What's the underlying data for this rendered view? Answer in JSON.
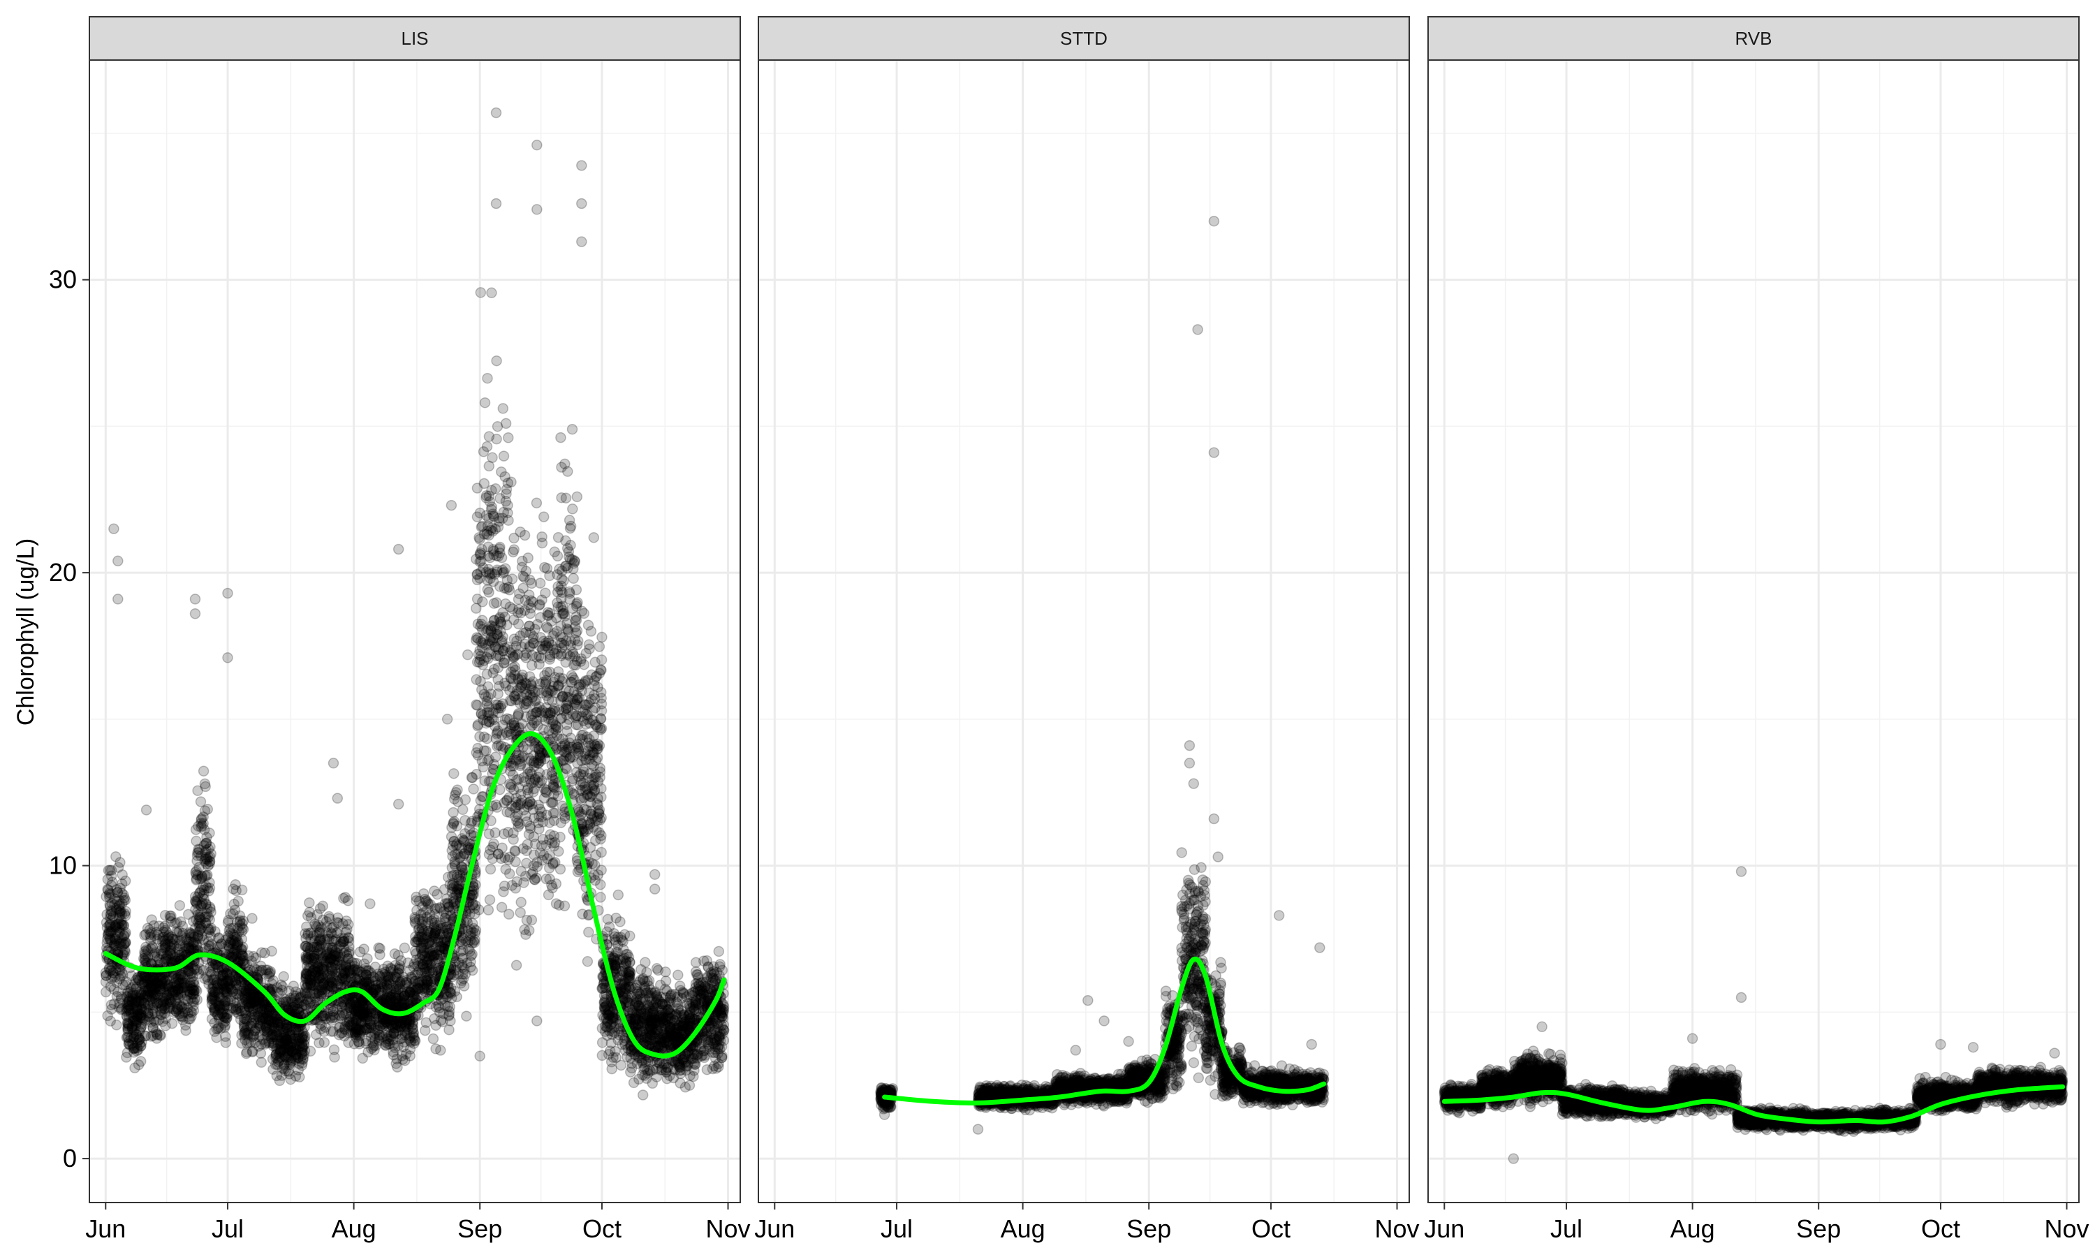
{
  "chart_data": {
    "type": "scatter",
    "ylabel": "Chlorophyll (ug/L)",
    "ylim": [
      -1.5,
      37.5
    ],
    "y_ticks": [
      0,
      10,
      20,
      30
    ],
    "y_tick_labels": [
      "0",
      "10",
      "20",
      "30"
    ],
    "xlim": [
      "2022-05-28",
      "2022-11-04"
    ],
    "x_ticks": [
      "2022-06-01",
      "2022-07-01",
      "2022-08-01",
      "2022-09-01",
      "2022-10-01",
      "2022-11-01"
    ],
    "x_tick_labels": [
      "Jun",
      "Jul",
      "Aug",
      "Sep",
      "Oct",
      "Nov"
    ],
    "grid": true,
    "smooth_color": "#00ff00",
    "point_color": "#000000",
    "point_alpha": 0.2,
    "panels": [
      {
        "name": "LIS",
        "ranges": [
          [
            "2022-06-01",
            "2022-06-06",
            4,
            11
          ],
          [
            "2022-06-06",
            "2022-06-10",
            2.8,
            7
          ],
          [
            "2022-06-10",
            "2022-06-15",
            3.5,
            8.5
          ],
          [
            "2022-06-15",
            "2022-06-23",
            3.5,
            9
          ],
          [
            "2022-06-23",
            "2022-06-27",
            4,
            14
          ],
          [
            "2022-06-27",
            "2022-07-01",
            3.2,
            8.5
          ],
          [
            "2022-07-01",
            "2022-07-05",
            3.5,
            10
          ],
          [
            "2022-07-05",
            "2022-07-12",
            3,
            7.5
          ],
          [
            "2022-07-12",
            "2022-07-20",
            2.2,
            6.5
          ],
          [
            "2022-07-20",
            "2022-07-31",
            3,
            9.5
          ],
          [
            "2022-07-31",
            "2022-08-07",
            3,
            7.5
          ],
          [
            "2022-08-07",
            "2022-08-16",
            2.8,
            7.5
          ],
          [
            "2022-08-16",
            "2022-08-25",
            3.5,
            10
          ],
          [
            "2022-08-25",
            "2022-08-31",
            4,
            14
          ],
          [
            "2022-08-31",
            "2022-09-08",
            5,
            30
          ],
          [
            "2022-09-08",
            "2022-09-20",
            6,
            24
          ],
          [
            "2022-09-20",
            "2022-09-25",
            6,
            26
          ],
          [
            "2022-09-25",
            "2022-10-01",
            6,
            20
          ],
          [
            "2022-10-01",
            "2022-10-08",
            2.5,
            9
          ],
          [
            "2022-10-08",
            "2022-10-17",
            2,
            7
          ],
          [
            "2022-10-17",
            "2022-10-24",
            2,
            6.5
          ],
          [
            "2022-10-24",
            "2022-10-31",
            2.5,
            7.5
          ]
        ],
        "points": [
          [
            "2022-06-03",
            21.5
          ],
          [
            "2022-06-04",
            20.4
          ],
          [
            "2022-06-04",
            19.1
          ],
          [
            "2022-06-23",
            19.1
          ],
          [
            "2022-06-23",
            18.6
          ],
          [
            "2022-07-01",
            19.3
          ],
          [
            "2022-07-01",
            17.1
          ],
          [
            "2022-06-11",
            11.9
          ],
          [
            "2022-07-27",
            13.5
          ],
          [
            "2022-07-28",
            12.3
          ],
          [
            "2022-08-12",
            12.1
          ],
          [
            "2022-08-12",
            20.8
          ],
          [
            "2022-08-25",
            22.3
          ],
          [
            "2022-08-24",
            15.0
          ],
          [
            "2022-08-29",
            17.2
          ],
          [
            "2022-09-05",
            35.7
          ],
          [
            "2022-09-05",
            32.6
          ],
          [
            "2022-09-15",
            34.6
          ],
          [
            "2022-09-15",
            32.4
          ],
          [
            "2022-09-26",
            33.9
          ],
          [
            "2022-09-26",
            32.6
          ],
          [
            "2022-09-26",
            31.3
          ],
          [
            "2022-09-29",
            21.2
          ],
          [
            "2022-10-01",
            17.8
          ],
          [
            "2022-10-05",
            9.0
          ],
          [
            "2022-10-14",
            9.7
          ],
          [
            "2022-10-14",
            9.2
          ],
          [
            "2022-09-01",
            3.5
          ],
          [
            "2022-09-15",
            4.7
          ],
          [
            "2022-09-10",
            6.6
          ],
          [
            "2022-07-07",
            8.2
          ],
          [
            "2022-08-05",
            8.7
          ]
        ],
        "smooth": [
          [
            "2022-06-01",
            7.0
          ],
          [
            "2022-06-09",
            6.5
          ],
          [
            "2022-06-18",
            6.5
          ],
          [
            "2022-06-24",
            6.95
          ],
          [
            "2022-07-01",
            6.7
          ],
          [
            "2022-07-10",
            5.7
          ],
          [
            "2022-07-15",
            4.9
          ],
          [
            "2022-07-20",
            4.7
          ],
          [
            "2022-07-25",
            5.3
          ],
          [
            "2022-07-30",
            5.7
          ],
          [
            "2022-08-03",
            5.7
          ],
          [
            "2022-08-08",
            5.1
          ],
          [
            "2022-08-13",
            4.95
          ],
          [
            "2022-08-18",
            5.3
          ],
          [
            "2022-08-22",
            5.8
          ],
          [
            "2022-08-26",
            7.7
          ],
          [
            "2022-08-30",
            10.0
          ],
          [
            "2022-09-04",
            12.6
          ],
          [
            "2022-09-09",
            14.0
          ],
          [
            "2022-09-14",
            14.5
          ],
          [
            "2022-09-19",
            13.7
          ],
          [
            "2022-09-24",
            11.6
          ],
          [
            "2022-09-29",
            8.5
          ],
          [
            "2022-10-04",
            5.7
          ],
          [
            "2022-10-09",
            4.0
          ],
          [
            "2022-10-14",
            3.55
          ],
          [
            "2022-10-19",
            3.6
          ],
          [
            "2022-10-24",
            4.3
          ],
          [
            "2022-10-29",
            5.4
          ],
          [
            "2022-10-31",
            6.1
          ]
        ]
      },
      {
        "name": "STTD",
        "ranges": [
          [
            "2022-06-27",
            "2022-06-30",
            1.6,
            2.6
          ],
          [
            "2022-07-21",
            "2022-08-09",
            1.6,
            2.6
          ],
          [
            "2022-08-09",
            "2022-08-27",
            1.7,
            3.0
          ],
          [
            "2022-08-27",
            "2022-09-05",
            1.8,
            3.5
          ],
          [
            "2022-09-05",
            "2022-09-09",
            2.0,
            6.0
          ],
          [
            "2022-09-09",
            "2022-09-15",
            2.5,
            11.0
          ],
          [
            "2022-09-15",
            "2022-09-19",
            2.0,
            7.0
          ],
          [
            "2022-09-19",
            "2022-09-24",
            1.8,
            4.0
          ],
          [
            "2022-09-24",
            "2022-10-14",
            1.7,
            3.2
          ]
        ],
        "points": [
          [
            "2022-09-17",
            32.0
          ],
          [
            "2022-09-13",
            28.3
          ],
          [
            "2022-09-17",
            24.1
          ],
          [
            "2022-09-11",
            14.1
          ],
          [
            "2022-09-11",
            13.5
          ],
          [
            "2022-09-12",
            12.8
          ],
          [
            "2022-09-17",
            11.6
          ],
          [
            "2022-09-18",
            10.3
          ],
          [
            "2022-10-03",
            8.3
          ],
          [
            "2022-10-13",
            7.2
          ],
          [
            "2022-08-17",
            5.4
          ],
          [
            "2022-08-21",
            4.7
          ],
          [
            "2022-07-21",
            1.0
          ],
          [
            "2022-06-28",
            1.5
          ],
          [
            "2022-08-14",
            3.7
          ],
          [
            "2022-08-27",
            4.0
          ],
          [
            "2022-10-11",
            3.9
          ]
        ],
        "smooth": [
          [
            "2022-06-28",
            2.1
          ],
          [
            "2022-07-10",
            1.95
          ],
          [
            "2022-07-21",
            1.9
          ],
          [
            "2022-08-01",
            2.0
          ],
          [
            "2022-08-10",
            2.1
          ],
          [
            "2022-08-20",
            2.3
          ],
          [
            "2022-08-27",
            2.3
          ],
          [
            "2022-09-01",
            2.6
          ],
          [
            "2022-09-05",
            3.8
          ],
          [
            "2022-09-09",
            5.8
          ],
          [
            "2022-09-12",
            6.8
          ],
          [
            "2022-09-15",
            6.2
          ],
          [
            "2022-09-19",
            3.9
          ],
          [
            "2022-09-23",
            2.8
          ],
          [
            "2022-09-28",
            2.45
          ],
          [
            "2022-10-04",
            2.3
          ],
          [
            "2022-10-10",
            2.35
          ],
          [
            "2022-10-14",
            2.55
          ]
        ]
      },
      {
        "name": "RVB",
        "ranges": [
          [
            "2022-06-01",
            "2022-06-10",
            1.5,
            2.6
          ],
          [
            "2022-06-10",
            "2022-06-18",
            1.6,
            3.2
          ],
          [
            "2022-06-18",
            "2022-06-30",
            1.7,
            3.8
          ],
          [
            "2022-06-30",
            "2022-07-15",
            1.3,
            2.6
          ],
          [
            "2022-07-15",
            "2022-07-27",
            1.3,
            2.4
          ],
          [
            "2022-07-27",
            "2022-08-12",
            1.4,
            3.2
          ],
          [
            "2022-08-12",
            "2022-08-28",
            0.9,
            1.8
          ],
          [
            "2022-08-28",
            "2022-09-15",
            0.9,
            1.7
          ],
          [
            "2022-09-15",
            "2022-09-25",
            0.9,
            1.8
          ],
          [
            "2022-09-25",
            "2022-10-10",
            1.5,
            2.8
          ],
          [
            "2022-10-10",
            "2022-10-31",
            1.7,
            3.2
          ]
        ],
        "points": [
          [
            "2022-08-13",
            9.8
          ],
          [
            "2022-08-13",
            5.5
          ],
          [
            "2022-06-18",
            0.0
          ],
          [
            "2022-06-25",
            4.5
          ],
          [
            "2022-08-01",
            4.1
          ],
          [
            "2022-10-01",
            3.9
          ],
          [
            "2022-10-09",
            3.8
          ],
          [
            "2022-10-29",
            3.6
          ],
          [
            "2022-09-28",
            2.0
          ]
        ],
        "smooth": [
          [
            "2022-06-01",
            1.95
          ],
          [
            "2022-06-10",
            2.0
          ],
          [
            "2022-06-18",
            2.1
          ],
          [
            "2022-06-25",
            2.25
          ],
          [
            "2022-07-01",
            2.2
          ],
          [
            "2022-07-10",
            1.9
          ],
          [
            "2022-07-20",
            1.65
          ],
          [
            "2022-07-27",
            1.75
          ],
          [
            "2022-08-04",
            1.95
          ],
          [
            "2022-08-10",
            1.85
          ],
          [
            "2022-08-17",
            1.5
          ],
          [
            "2022-08-24",
            1.35
          ],
          [
            "2022-09-01",
            1.25
          ],
          [
            "2022-09-10",
            1.3
          ],
          [
            "2022-09-17",
            1.25
          ],
          [
            "2022-09-24",
            1.45
          ],
          [
            "2022-10-01",
            1.85
          ],
          [
            "2022-10-10",
            2.15
          ],
          [
            "2022-10-20",
            2.35
          ],
          [
            "2022-10-31",
            2.45
          ]
        ]
      }
    ]
  }
}
